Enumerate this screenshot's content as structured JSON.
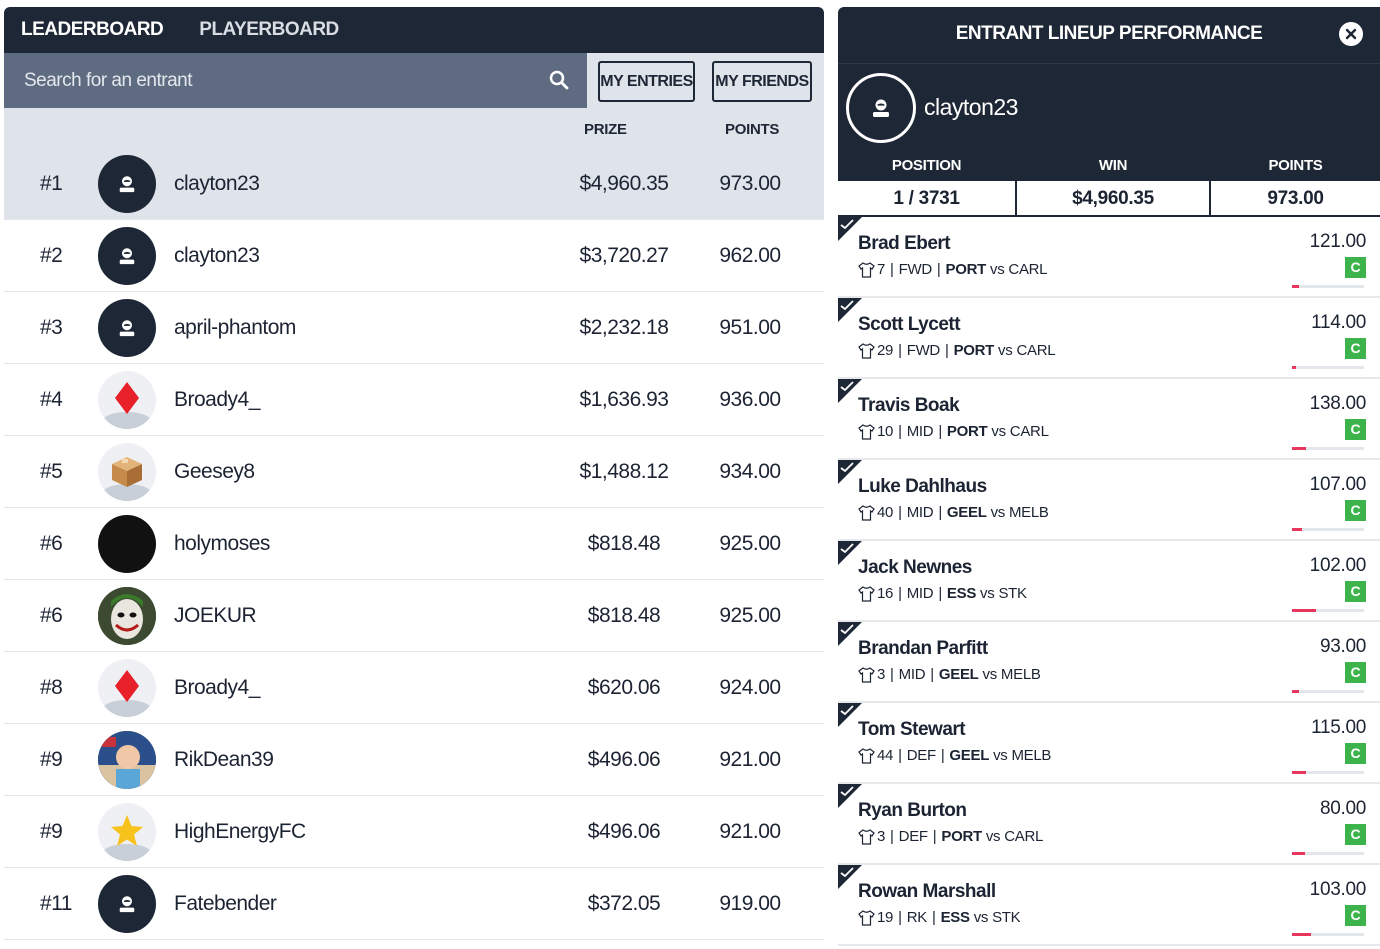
{
  "tabs": {
    "leaderboard": "LEADERBOARD",
    "playerboard": "PLAYERBOARD"
  },
  "search": {
    "placeholder": "Search for an entrant"
  },
  "filters": {
    "my_entries": "MY ENTRIES",
    "my_friends": "MY FRIENDS"
  },
  "columns": {
    "prize": "PRIZE",
    "points": "POINTS"
  },
  "leaderboard": [
    {
      "rank": "#1",
      "name": "clayton23",
      "prize": "$4,960.35",
      "points": "973.00",
      "avatar": "default-user-icon"
    },
    {
      "rank": "#2",
      "name": "clayton23",
      "prize": "$3,720.27",
      "points": "962.00",
      "avatar": "default-user-icon"
    },
    {
      "rank": "#3",
      "name": "april-phantom",
      "prize": "$2,232.18",
      "points": "951.00",
      "avatar": "default-user-icon"
    },
    {
      "rank": "#4",
      "name": "Broady4_",
      "prize": "$1,636.93",
      "points": "936.00",
      "avatar": "red-diamond-icon"
    },
    {
      "rank": "#5",
      "name": "Geesey8",
      "prize": "$1,488.12",
      "points": "934.00",
      "avatar": "box-icon"
    },
    {
      "rank": "#6",
      "name": "holymoses",
      "prize": "$818.48",
      "points": "925.00",
      "avatar": "black-circle"
    },
    {
      "rank": "#6",
      "name": "JOEKUR",
      "prize": "$818.48",
      "points": "925.00",
      "avatar": "joker-photo"
    },
    {
      "rank": "#8",
      "name": "Broady4_",
      "prize": "$620.06",
      "points": "924.00",
      "avatar": "red-diamond-icon"
    },
    {
      "rank": "#9",
      "name": "RikDean39",
      "prize": "$496.06",
      "points": "921.00",
      "avatar": "child-photo"
    },
    {
      "rank": "#9",
      "name": "HighEnergyFC",
      "prize": "$496.06",
      "points": "921.00",
      "avatar": "star-icon"
    },
    {
      "rank": "#11",
      "name": "Fatebender",
      "prize": "$372.05",
      "points": "919.00",
      "avatar": "default-user-icon"
    }
  ],
  "panel": {
    "title": "ENTRANT LINEUP PERFORMANCE",
    "username": "clayton23",
    "stats": {
      "position_label": "POSITION",
      "position": "1 / 3731",
      "win_label": "WIN",
      "win": "$4,960.35",
      "points_label": "POINTS",
      "points": "973.00"
    },
    "players": [
      {
        "name": "Brad Ebert",
        "number": "7",
        "pos": "FWD",
        "team": "PORT",
        "vs": "vs",
        "opp": "CARL",
        "points": "121.00",
        "badge": "C",
        "progress": 0.1
      },
      {
        "name": "Scott Lycett",
        "number": "29",
        "pos": "FWD",
        "team": "PORT",
        "vs": "vs",
        "opp": "CARL",
        "points": "114.00",
        "badge": "C",
        "progress": 0.05
      },
      {
        "name": "Travis Boak",
        "number": "10",
        "pos": "MID",
        "team": "PORT",
        "vs": "vs",
        "opp": "CARL",
        "points": "138.00",
        "badge": "C",
        "progress": 0.2
      },
      {
        "name": "Luke Dahlhaus",
        "number": "40",
        "pos": "MID",
        "team": "GEEL",
        "vs": "vs",
        "opp": "MELB",
        "points": "107.00",
        "badge": "C",
        "progress": 0.14
      },
      {
        "name": "Jack Newnes",
        "number": "16",
        "pos": "MID",
        "team": "ESS",
        "vs": "vs",
        "opp": "STK",
        "points": "102.00",
        "badge": "C",
        "progress": 0.33
      },
      {
        "name": "Brandan Parfitt",
        "number": "3",
        "pos": "MID",
        "team": "GEEL",
        "vs": "vs",
        "opp": "MELB",
        "points": "93.00",
        "badge": "C",
        "progress": 0.1
      },
      {
        "name": "Tom Stewart",
        "number": "44",
        "pos": "DEF",
        "team": "GEEL",
        "vs": "vs",
        "opp": "MELB",
        "points": "115.00",
        "badge": "C",
        "progress": 0.2
      },
      {
        "name": "Ryan Burton",
        "number": "3",
        "pos": "DEF",
        "team": "PORT",
        "vs": "vs",
        "opp": "CARL",
        "points": "80.00",
        "badge": "C",
        "progress": 0.18
      },
      {
        "name": "Rowan Marshall",
        "number": "19",
        "pos": "RK",
        "team": "ESS",
        "vs": "vs",
        "opp": "STK",
        "points": "103.00",
        "badge": "C",
        "progress": 0.27
      }
    ]
  }
}
